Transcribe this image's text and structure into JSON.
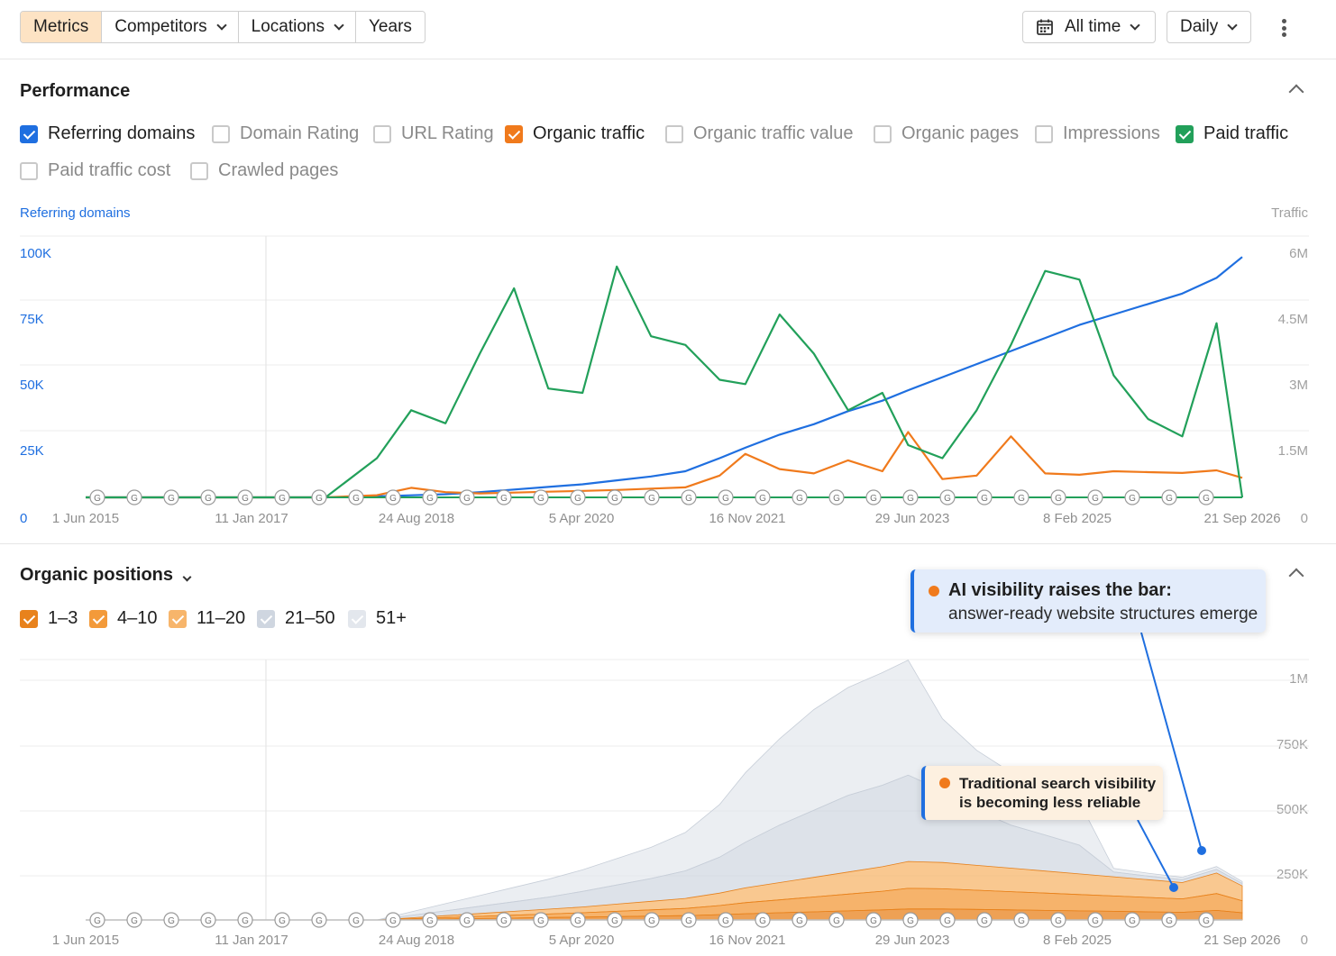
{
  "toolbar": {
    "tabs": [
      {
        "label": "Metrics",
        "active": true,
        "dropdown": false
      },
      {
        "label": "Competitors",
        "active": false,
        "dropdown": true
      },
      {
        "label": "Locations",
        "active": false,
        "dropdown": true
      },
      {
        "label": "Years",
        "active": false,
        "dropdown": false
      }
    ],
    "date_range": "All time",
    "interval": "Daily",
    "calendar_icon": "calendar-icon",
    "more_icon": "kebab-menu-icon"
  },
  "performance": {
    "title": "Performance",
    "metrics": [
      {
        "label": "Referring domains",
        "checked": true,
        "color": "#1f6fe0"
      },
      {
        "label": "Domain Rating",
        "checked": false
      },
      {
        "label": "URL Rating",
        "checked": false
      },
      {
        "label": "Organic traffic",
        "checked": true,
        "color": "#f07a1c"
      },
      {
        "label": "Organic traffic value",
        "checked": false
      },
      {
        "label": "Organic pages",
        "checked": false
      },
      {
        "label": "Impressions",
        "checked": false
      },
      {
        "label": "Paid traffic",
        "checked": true,
        "color": "#22a05a"
      },
      {
        "label": "Paid traffic cost",
        "checked": false
      },
      {
        "label": "Crawled pages",
        "checked": false
      }
    ],
    "left_axis_title": "Referring domains",
    "right_axis_title": "Traffic",
    "left_ticks": [
      "100K",
      "75K",
      "50K",
      "25K",
      "0"
    ],
    "right_ticks": [
      "6M",
      "4.5M",
      "3M",
      "1.5M",
      "0"
    ],
    "x_ticks": [
      "1 Jun 2015",
      "11 Jan 2017",
      "24 Aug 2018",
      "5 Apr 2020",
      "16 Nov 2021",
      "29 Jun 2023",
      "8 Feb 2025",
      "21 Sep 2026"
    ]
  },
  "positions": {
    "title": "Organic positions",
    "buckets": [
      {
        "label": "1–3",
        "checked": true,
        "color": "#e8821c"
      },
      {
        "label": "4–10",
        "checked": true,
        "color": "#f39a3a"
      },
      {
        "label": "11–20",
        "checked": true,
        "color": "#f7b56b"
      },
      {
        "label": "21–50",
        "checked": true,
        "color": "#cfd6e0"
      },
      {
        "label": "51+",
        "checked": true,
        "color": "#e3e7ed"
      }
    ],
    "right_ticks": [
      "1M",
      "750K",
      "500K",
      "250K",
      "0"
    ],
    "x_ticks": [
      "1 Jun 2015",
      "11 Jan 2017",
      "24 Aug 2018",
      "5 Apr 2020",
      "16 Nov 2021",
      "29 Jun 2023",
      "8 Feb 2025",
      "21 Sep 2026"
    ]
  },
  "callouts": {
    "ai": {
      "title": "AI visibility raises the bar:",
      "body": "answer-ready website structures emerge"
    },
    "traditional": {
      "line1": "Traditional search visibility",
      "line2": "is becoming less reliable"
    }
  },
  "chart_data": [
    {
      "type": "line",
      "title": "Performance",
      "ylabel": "Referring domains",
      "y2label": "Traffic",
      "ylim": [
        0,
        100000
      ],
      "y2lim": [
        0,
        6000000
      ],
      "x_ticks": [
        "1 Jun 2015",
        "11 Jan 2017",
        "24 Aug 2018",
        "5 Apr 2020",
        "16 Nov 2021",
        "29 Jun 2023",
        "8 Feb 2025",
        "21 Sep 2026"
      ],
      "x": [
        "2015-06",
        "2016-03",
        "2017-01",
        "2017-10",
        "2018-04",
        "2018-08",
        "2018-12",
        "2019-04",
        "2019-08",
        "2019-12",
        "2020-04",
        "2020-08",
        "2020-12",
        "2021-04",
        "2021-08",
        "2021-11",
        "2022-03",
        "2022-07",
        "2022-11",
        "2023-03",
        "2023-06",
        "2023-10",
        "2024-02",
        "2024-06",
        "2024-10",
        "2025-02",
        "2025-06",
        "2025-10",
        "2026-02",
        "2026-06",
        "2026-09"
      ],
      "series": [
        {
          "name": "Referring domains",
          "axis": "left",
          "color": "#1f6fe0",
          "values": [
            0,
            0,
            0,
            0,
            400,
            800,
            1200,
            2000,
            3000,
            4000,
            5000,
            6500,
            8000,
            10000,
            15000,
            19000,
            24000,
            28000,
            33000,
            37000,
            41000,
            46000,
            51000,
            56000,
            61000,
            66000,
            70000,
            74000,
            78000,
            84000,
            92000
          ]
        },
        {
          "name": "Organic traffic",
          "axis": "right",
          "color": "#f07a1c",
          "values": [
            0,
            0,
            0,
            0,
            50000,
            220000,
            120000,
            90000,
            110000,
            130000,
            150000,
            170000,
            200000,
            230000,
            500000,
            1000000,
            650000,
            550000,
            850000,
            600000,
            1500000,
            420000,
            500000,
            1400000,
            550000,
            520000,
            600000,
            580000,
            560000,
            620000,
            450000
          ]
        },
        {
          "name": "Paid traffic",
          "axis": "right",
          "color": "#22a05a",
          "values": [
            0,
            0,
            0,
            0,
            900000,
            2000000,
            1700000,
            3300000,
            4800000,
            2500000,
            2400000,
            5300000,
            3700000,
            3500000,
            2700000,
            2600000,
            4200000,
            3300000,
            2000000,
            2400000,
            1200000,
            900000,
            2000000,
            3500000,
            5200000,
            5000000,
            2800000,
            1800000,
            1400000,
            4000000,
            0
          ]
        }
      ]
    },
    {
      "type": "area",
      "title": "Organic positions",
      "ylim": [
        0,
        1000000
      ],
      "x_ticks": [
        "1 Jun 2015",
        "11 Jan 2017",
        "24 Aug 2018",
        "5 Apr 2020",
        "16 Nov 2021",
        "29 Jun 2023",
        "8 Feb 2025",
        "21 Sep 2026"
      ],
      "x": [
        "2015-06",
        "2016-03",
        "2017-01",
        "2017-10",
        "2018-04",
        "2018-08",
        "2018-12",
        "2019-04",
        "2019-08",
        "2019-12",
        "2020-04",
        "2020-08",
        "2020-12",
        "2021-04",
        "2021-08",
        "2021-11",
        "2022-03",
        "2022-07",
        "2022-11",
        "2023-03",
        "2023-06",
        "2023-10",
        "2024-02",
        "2024-06",
        "2024-10",
        "2025-02",
        "2025-06",
        "2025-10",
        "2026-02",
        "2026-06",
        "2026-09"
      ],
      "series": [
        {
          "name": "1–3",
          "color": "#e8821c",
          "values": [
            0,
            0,
            0,
            0,
            0,
            2000,
            4000,
            6000,
            8000,
            10000,
            12000,
            14000,
            16000,
            18000,
            22000,
            26000,
            30000,
            34000,
            38000,
            42000,
            46000,
            46000,
            44000,
            42000,
            40000,
            38000,
            36000,
            34000,
            32000,
            40000,
            30000
          ]
        },
        {
          "name": "4–10",
          "color": "#f39a3a",
          "values": [
            0,
            0,
            0,
            0,
            0,
            3000,
            6000,
            9000,
            12000,
            15000,
            18000,
            22000,
            26000,
            30000,
            38000,
            46000,
            54000,
            62000,
            70000,
            78000,
            86000,
            84000,
            80000,
            76000,
            72000,
            68000,
            64000,
            60000,
            56000,
            70000,
            50000
          ]
        },
        {
          "name": "11–20",
          "color": "#f7b56b",
          "values": [
            0,
            0,
            0,
            0,
            0,
            4000,
            8000,
            12000,
            16000,
            20000,
            24000,
            30000,
            36000,
            42000,
            52000,
            62000,
            72000,
            82000,
            92000,
            102000,
            112000,
            110000,
            104000,
            98000,
            92000,
            86000,
            80000,
            74000,
            68000,
            86000,
            62000
          ]
        },
        {
          "name": "21–50",
          "color": "#cfd6e0",
          "values": [
            0,
            0,
            0,
            0,
            0,
            10000,
            20000,
            30000,
            40000,
            50000,
            65000,
            80000,
            95000,
            115000,
            150000,
            190000,
            240000,
            280000,
            320000,
            340000,
            360000,
            300000,
            230000,
            180000,
            150000,
            120000,
            20000,
            15000,
            12000,
            15000,
            10000
          ]
        },
        {
          "name": "51+",
          "color": "#e3e7ed",
          "values": [
            0,
            0,
            0,
            0,
            0,
            15000,
            30000,
            45000,
            60000,
            75000,
            90000,
            110000,
            130000,
            160000,
            220000,
            290000,
            360000,
            420000,
            450000,
            470000,
            480000,
            300000,
            250000,
            220000,
            200000,
            180000,
            15000,
            12000,
            10000,
            12000,
            8000
          ]
        }
      ]
    }
  ]
}
